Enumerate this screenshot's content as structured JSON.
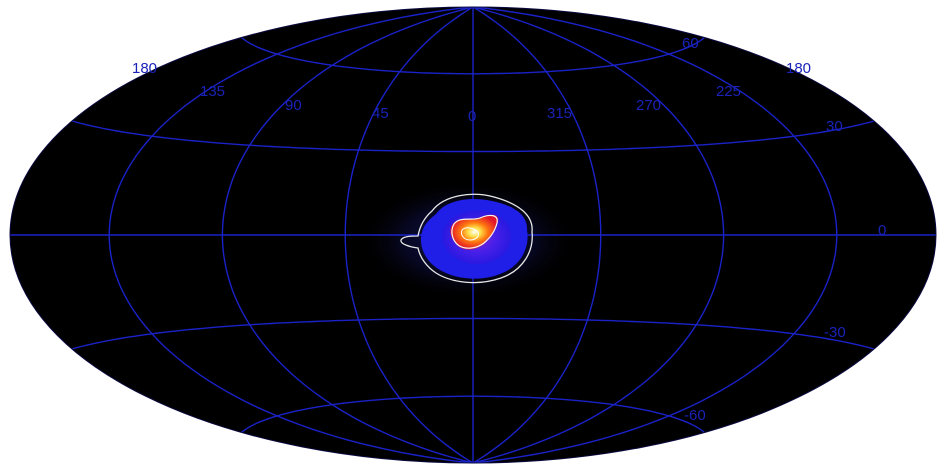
{
  "projection": "hammer-aitoff",
  "colors": {
    "sky": "#000000",
    "grid": "#1a22c8",
    "labels": "#1a22b8",
    "contour": "#e8e8e8",
    "background": "#ffffff"
  },
  "longitude_labels": {
    "l180_left": "180",
    "l135": "135",
    "l90": "90",
    "l45": "45",
    "l0": "0",
    "l315": "315",
    "l270": "270",
    "l225": "225",
    "l180_right": "180"
  },
  "latitude_labels": {
    "b60": "60",
    "b30": "30",
    "b0": "0",
    "bm30": "-30",
    "bm60": "-60"
  },
  "emission_source": {
    "center_l": 0,
    "center_b": 0,
    "colormap": [
      "dark blue",
      "blue",
      "purple",
      "red",
      "orange",
      "yellow",
      "white"
    ]
  }
}
